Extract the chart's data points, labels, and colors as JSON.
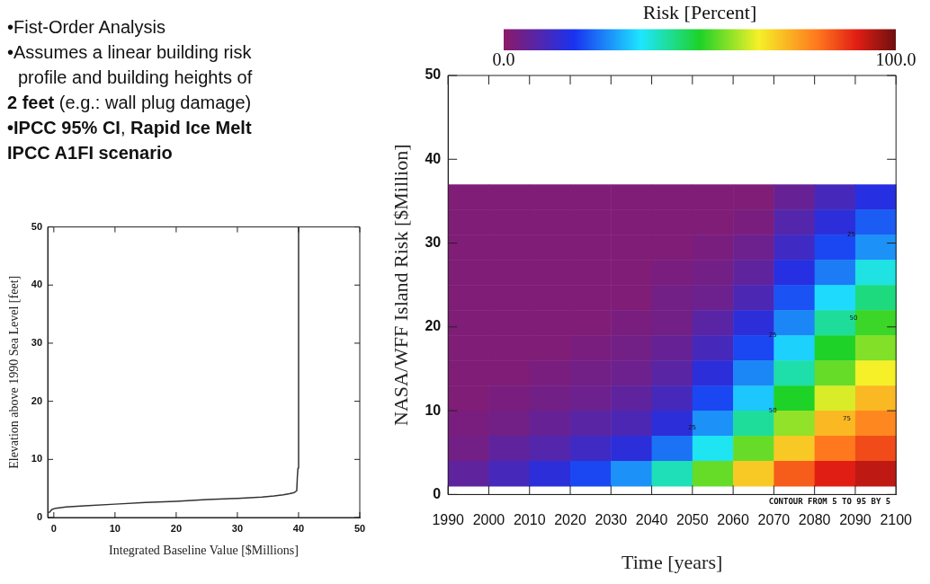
{
  "chart_data": [
    {
      "type": "other",
      "annotations": [
        "•Fist-Order Analysis",
        "•Assumes a linear building risk",
        "profile and building heights of",
        "2 feet",
        " (e.g.: wall plug damage)",
        "•IPCC 95% CI",
        ", ",
        "Rapid Ice Melt",
        "IPCC A1FI scenario"
      ]
    },
    {
      "type": "line",
      "xlabel": "Integrated Baseline Value [$Millions]",
      "ylabel": "Elevation above 1990 Sea Level [feet]",
      "xlim": [
        -1,
        50
      ],
      "ylim": [
        0,
        50
      ],
      "xticks": [
        0,
        10,
        20,
        30,
        40,
        50
      ],
      "yticks": [
        0,
        10,
        20,
        30,
        40,
        50
      ],
      "grid": false,
      "legend": false,
      "series": [
        {
          "color": "#333333",
          "x": [
            -0.8,
            -0.3,
            0.3,
            2,
            5,
            10,
            15,
            20,
            25,
            30,
            34,
            36,
            37.5,
            38.5,
            39.3,
            39.7,
            39.8,
            39.9,
            40
          ],
          "values": [
            0.8,
            1.4,
            1.6,
            1.8,
            2.0,
            2.3,
            2.6,
            2.8,
            3.1,
            3.3,
            3.5,
            3.7,
            3.9,
            4.1,
            4.3,
            4.6,
            7,
            8.5,
            50
          ]
        }
      ]
    },
    {
      "type": "heatmap",
      "xlabel": "Time [years]",
      "ylabel": "NASA/WFF Island Risk [$Million]",
      "clabel": "Risk [Percent]",
      "clim": [
        0,
        100
      ],
      "cticks": [
        {
          "value": 0,
          "label": "0.0"
        },
        {
          "value": 100,
          "label": "100.0"
        }
      ],
      "xlim": [
        1990,
        2100
      ],
      "ylim": [
        0,
        50
      ],
      "xticks": [
        1990,
        2000,
        2010,
        2020,
        2030,
        2040,
        2050,
        2060,
        2070,
        2080,
        2090,
        2100
      ],
      "yticks": [
        0,
        10,
        20,
        30,
        40,
        50
      ],
      "x": [
        1995,
        2005,
        2015,
        2025,
        2035,
        2045,
        2055,
        2065,
        2075,
        2085,
        2095
      ],
      "y": [
        35.5,
        32.5,
        29.5,
        26.5,
        23.5,
        20.5,
        17.5,
        14.5,
        11.5,
        8.5,
        5.5,
        2.5
      ],
      "cells": [
        [
          2,
          2,
          2,
          2,
          2,
          2,
          2,
          2,
          6,
          11,
          16
        ],
        [
          2,
          2,
          2,
          2,
          2,
          2,
          2,
          3,
          9,
          15,
          22
        ],
        [
          2,
          2,
          2,
          2,
          2,
          2,
          3,
          5,
          12,
          20,
          27
        ],
        [
          2,
          2,
          2,
          2,
          2,
          3,
          4,
          7,
          16,
          25,
          37
        ],
        [
          2,
          2,
          2,
          2,
          2,
          4,
          5,
          10,
          21,
          34,
          44
        ],
        [
          2,
          2,
          2,
          2,
          3,
          4,
          8,
          15,
          26,
          42,
          52
        ],
        [
          2,
          2,
          2,
          3,
          4,
          6,
          11,
          20,
          33,
          50,
          57
        ],
        [
          2,
          2,
          3,
          4,
          5,
          8,
          15,
          26,
          41,
          55,
          65
        ],
        [
          2,
          3,
          4,
          5,
          7,
          11,
          20,
          32,
          50,
          63,
          72
        ],
        [
          3,
          4,
          6,
          8,
          10,
          15,
          27,
          42,
          58,
          72,
          78
        ],
        [
          4,
          7,
          9,
          12,
          15,
          24,
          36,
          55,
          70,
          80,
          85
        ],
        [
          7,
          11,
          15,
          20,
          27,
          40,
          55,
          70,
          83,
          90,
          93
        ]
      ],
      "annotations": [
        "25",
        "25",
        "50",
        "50",
        "75",
        "25",
        "CONTOUR FROM 5 TO 95 BY 5"
      ]
    }
  ]
}
